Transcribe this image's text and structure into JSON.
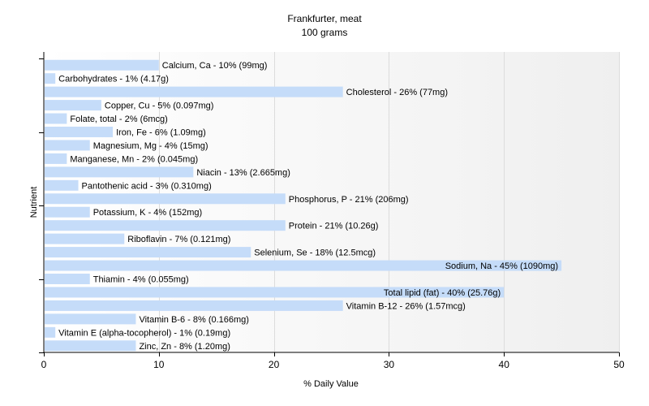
{
  "chart_data": {
    "type": "bar",
    "orientation": "horizontal",
    "title": "Frankfurter, meat",
    "subtitle": "100 grams",
    "xlabel": "% Daily Value",
    "ylabel": "Nutrient",
    "xlim": [
      0,
      50
    ],
    "xticks": [
      0,
      10,
      20,
      30,
      40,
      50
    ],
    "grid": true,
    "bar_color": "#c5dcf9",
    "bars": [
      {
        "label": "Calcium, Ca - 10% (99mg)",
        "value": 10
      },
      {
        "label": "Carbohydrates - 1% (4.17g)",
        "value": 1
      },
      {
        "label": "Cholesterol - 26% (77mg)",
        "value": 26
      },
      {
        "label": "Copper, Cu - 5% (0.097mg)",
        "value": 5
      },
      {
        "label": "Folate, total - 2% (6mcg)",
        "value": 2
      },
      {
        "label": "Iron, Fe - 6% (1.09mg)",
        "value": 6
      },
      {
        "label": "Magnesium, Mg - 4% (15mg)",
        "value": 4
      },
      {
        "label": "Manganese, Mn - 2% (0.045mg)",
        "value": 2
      },
      {
        "label": "Niacin - 13% (2.665mg)",
        "value": 13
      },
      {
        "label": "Pantothenic acid - 3% (0.310mg)",
        "value": 3
      },
      {
        "label": "Phosphorus, P - 21% (206mg)",
        "value": 21
      },
      {
        "label": "Potassium, K - 4% (152mg)",
        "value": 4
      },
      {
        "label": "Protein - 21% (10.26g)",
        "value": 21
      },
      {
        "label": "Riboflavin - 7% (0.121mg)",
        "value": 7
      },
      {
        "label": "Selenium, Se - 18% (12.5mcg)",
        "value": 18
      },
      {
        "label": "Sodium, Na - 45% (1090mg)",
        "value": 45
      },
      {
        "label": "Thiamin - 4% (0.055mg)",
        "value": 4
      },
      {
        "label": "Total lipid (fat) - 40% (25.76g)",
        "value": 40
      },
      {
        "label": "Vitamin B-12 - 26% (1.57mcg)",
        "value": 26
      },
      {
        "label": "Vitamin B-6 - 8% (0.166mg)",
        "value": 8
      },
      {
        "label": "Vitamin E (alpha-tocopherol) - 1% (0.19mg)",
        "value": 1
      },
      {
        "label": "Zinc, Zn - 8% (1.20mg)",
        "value": 8
      }
    ]
  }
}
